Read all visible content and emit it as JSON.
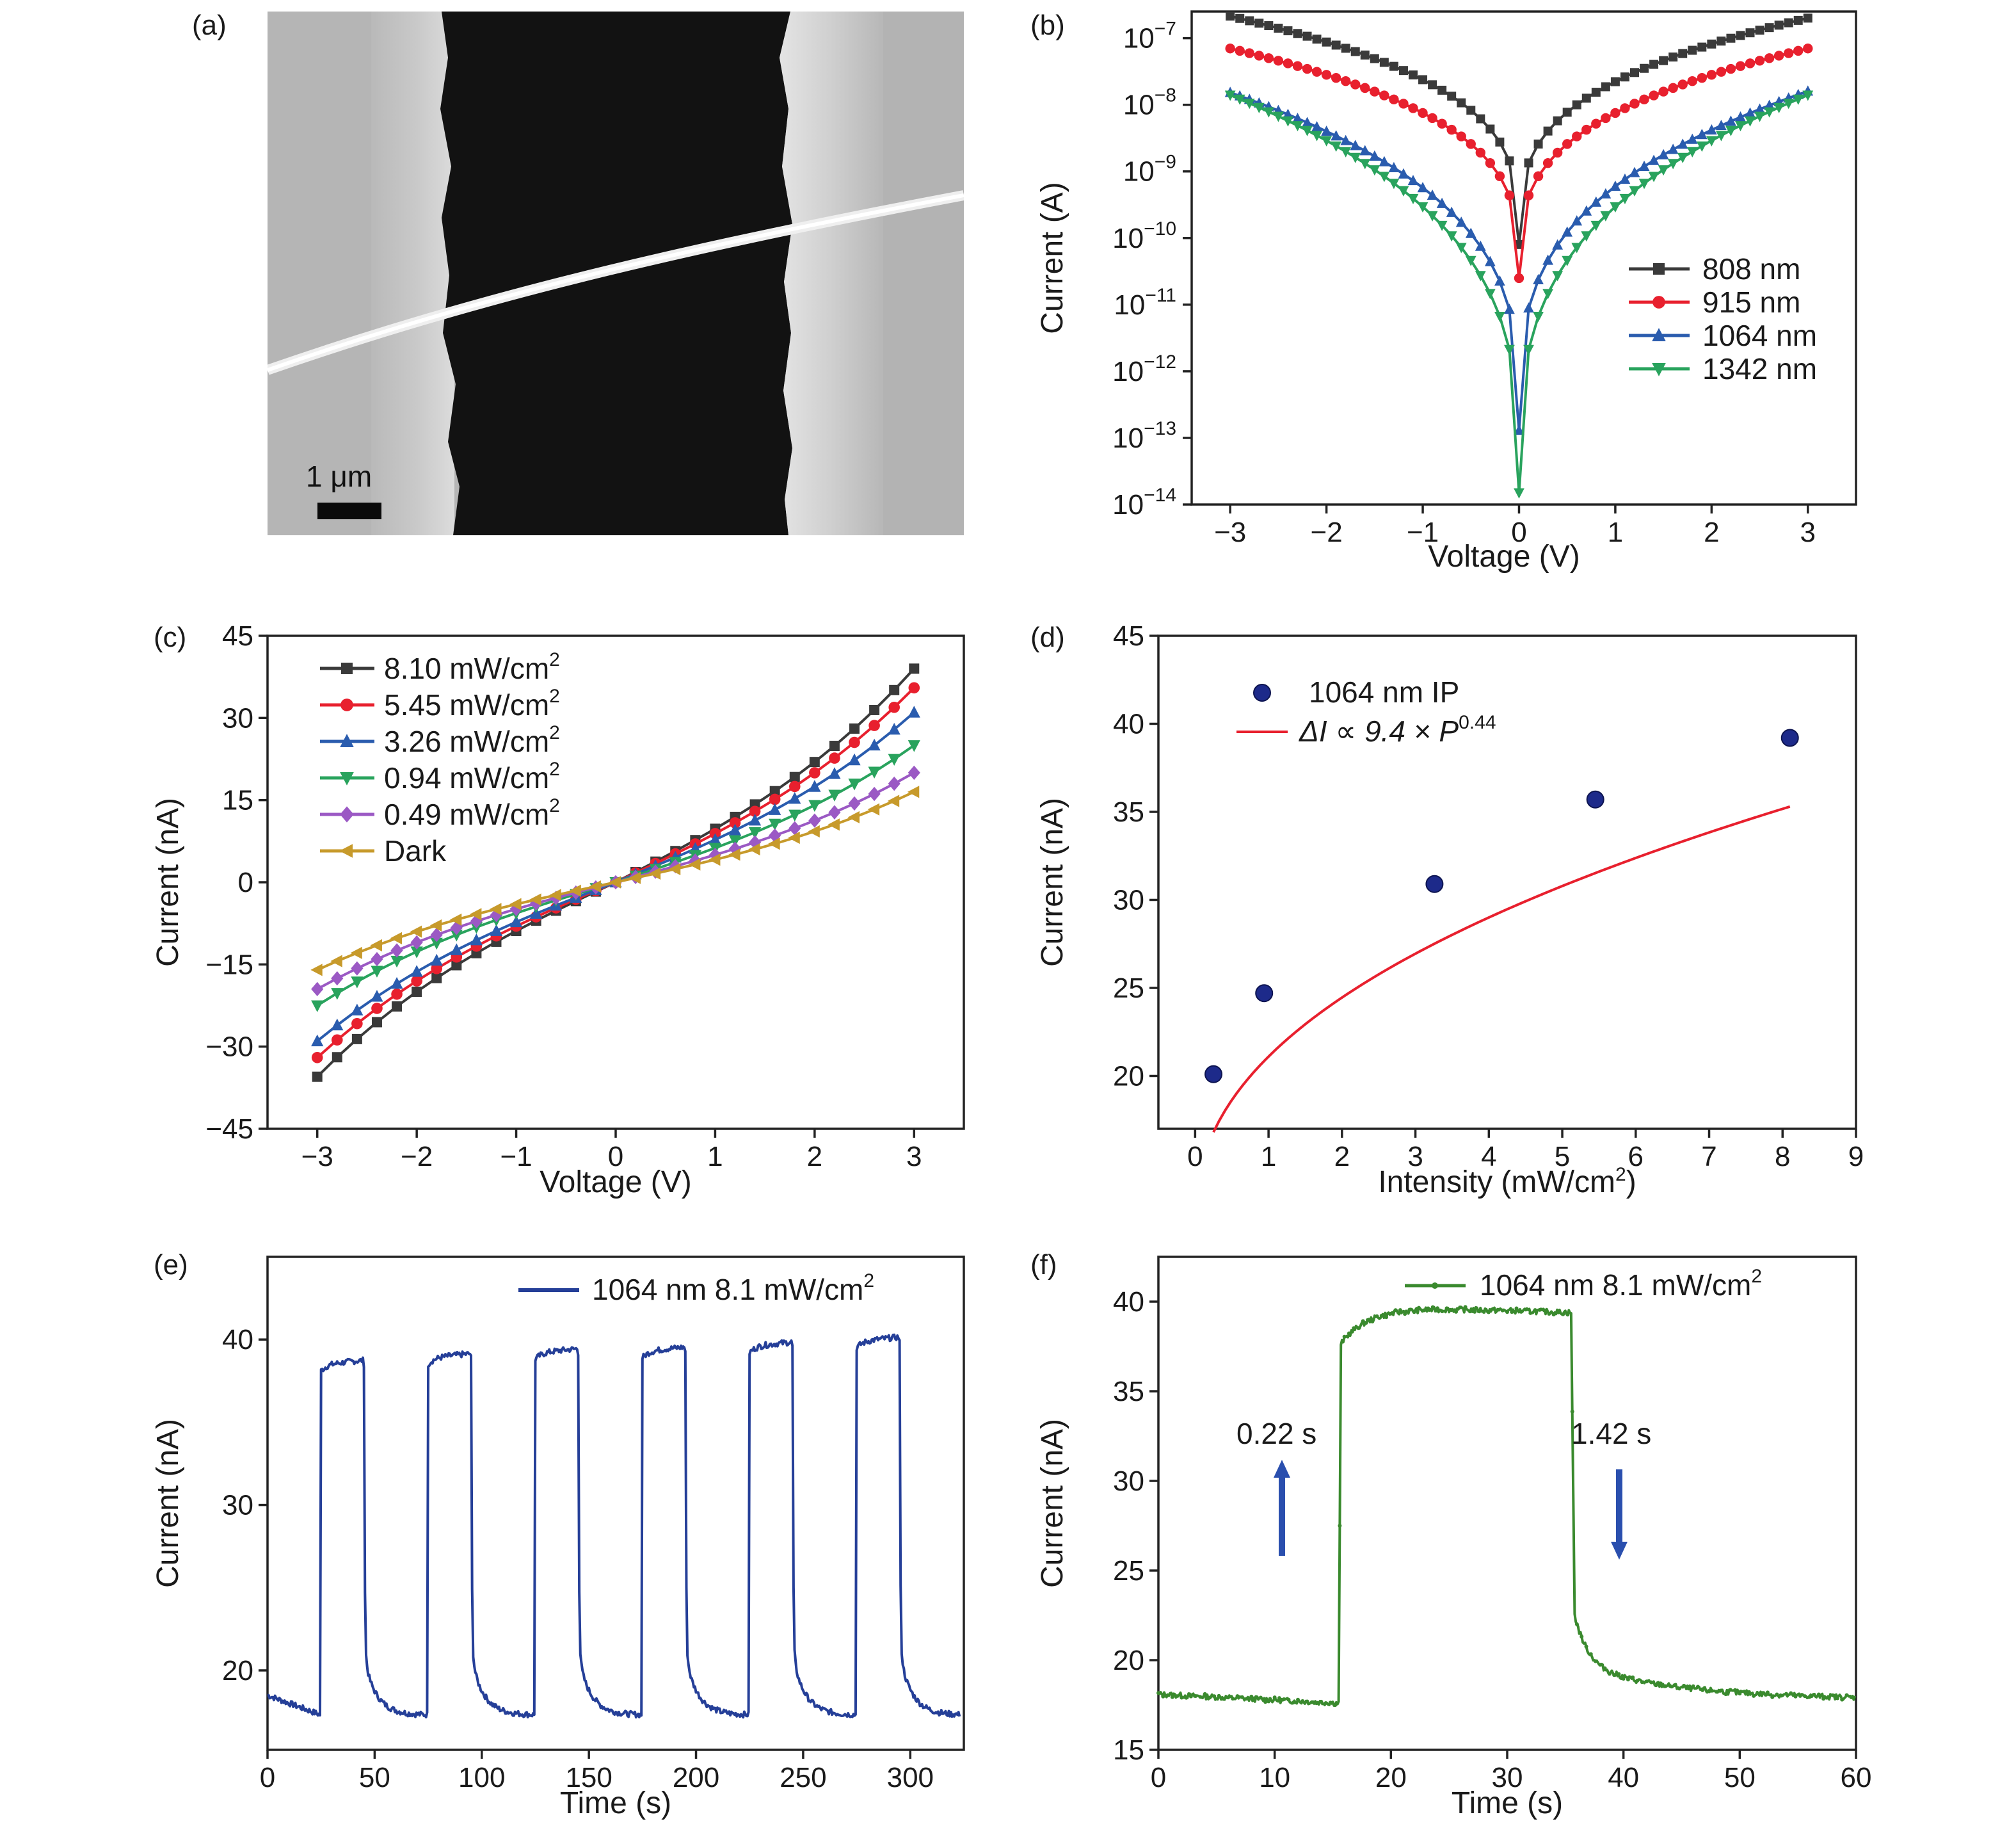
{
  "panels": {
    "a": {
      "label": "(a)",
      "scale_bar_label": "1 μm"
    },
    "b": {
      "label": "(b)"
    },
    "c": {
      "label": "(c)"
    },
    "d": {
      "label": "(d)"
    },
    "e": {
      "label": "(e)"
    },
    "f": {
      "label": "(f)"
    }
  },
  "colors": {
    "black": "#3a3a3a",
    "red": "#e8202e",
    "blue": "#2a5cae",
    "green": "#29a35d",
    "purple": "#9b59c4",
    "gold": "#c79a2b",
    "navy": "#253f98",
    "dgreen": "#3a8a2e"
  },
  "chart_data": [
    {
      "id": "b",
      "type": "line",
      "yscale": "log",
      "xlabel": "Voltage (V)",
      "ylabel": "Current (A)",
      "xlim": [
        -3.4,
        3.5
      ],
      "ylim_exp": [
        -14,
        -6.6
      ],
      "xticks": [
        -3,
        -2,
        -1,
        0,
        1,
        2,
        3
      ],
      "xtick_labels": [
        "−3",
        "−2",
        "−1",
        "0",
        "1",
        "2",
        "3"
      ],
      "yticks_exp": [
        -14,
        -13,
        -12,
        -11,
        -10,
        -9,
        -8,
        -7
      ],
      "ytick_base": "10",
      "ytick_exps": [
        "−14",
        "−13",
        "−12",
        "−11",
        "−10",
        "−9",
        "−8",
        "−7"
      ],
      "series": [
        {
          "name": "808 nm",
          "color": "#3a3a3a",
          "marker": "square",
          "I_at_3V": 2e-07,
          "I_min": 8e-11
        },
        {
          "name": "915 nm",
          "color": "#e8202e",
          "marker": "circle",
          "I_at_3V": 7e-08,
          "I_min": 2.5e-11
        },
        {
          "name": "1064 nm",
          "color": "#2a5cae",
          "marker": "triangle-up",
          "I_at_3V": 1.6e-08,
          "I_min": 1.3e-13
        },
        {
          "name": "1342 nm",
          "color": "#29a35d",
          "marker": "triangle-down",
          "I_at_3V": 1.4e-08,
          "I_min": 1.5e-14
        }
      ]
    },
    {
      "id": "c",
      "type": "line",
      "xlabel": "Voltage (V)",
      "ylabel": "Current (nA)",
      "xlim": [
        -3.5,
        3.5
      ],
      "ylim": [
        -45,
        45
      ],
      "xticks": [
        -3,
        -2,
        -1,
        0,
        1,
        2,
        3
      ],
      "xtick_labels": [
        "−3",
        "−2",
        "−1",
        "0",
        "1",
        "2",
        "3"
      ],
      "yticks": [
        -45,
        -30,
        -15,
        0,
        15,
        30,
        45
      ],
      "ytick_labels": [
        "−45",
        "−30",
        "−15",
        "0",
        "15",
        "30",
        "45"
      ],
      "series": [
        {
          "name": "8.10 mW/cm",
          "sup": "2",
          "color": "#3a3a3a",
          "marker": "square",
          "y_at_neg3": -35.5,
          "y_at_pos3": 39
        },
        {
          "name": "5.45 mW/cm",
          "sup": "2",
          "color": "#e8202e",
          "marker": "circle",
          "y_at_neg3": -32,
          "y_at_pos3": 35.5
        },
        {
          "name": "3.26 mW/cm",
          "sup": "2",
          "color": "#2a5cae",
          "marker": "triangle-up",
          "y_at_neg3": -29,
          "y_at_pos3": 31
        },
        {
          "name": "0.94 mW/cm",
          "sup": "2",
          "color": "#29a35d",
          "marker": "triangle-down",
          "y_at_neg3": -22.5,
          "y_at_pos3": 25
        },
        {
          "name": "0.49 mW/cm",
          "sup": "2",
          "color": "#9b59c4",
          "marker": "diamond",
          "y_at_neg3": -19.5,
          "y_at_pos3": 20
        },
        {
          "name": "Dark",
          "sup": "",
          "color": "#c79a2b",
          "marker": "triangle-left",
          "y_at_neg3": -16,
          "y_at_pos3": 16.5
        }
      ]
    },
    {
      "id": "d",
      "type": "scatter",
      "xlabel": "Intensity (mW/cm",
      "xlabel_sup": "2",
      "xlabel_end": ")",
      "ylabel": "Current (nA)",
      "xlim": [
        -0.5,
        9
      ],
      "ylim": [
        17,
        45
      ],
      "xticks": [
        0,
        1,
        2,
        3,
        4,
        5,
        6,
        7,
        8,
        9
      ],
      "yticks": [
        20,
        25,
        30,
        35,
        40,
        45
      ],
      "points": [
        {
          "x": 0.25,
          "y": 20.1
        },
        {
          "x": 0.94,
          "y": 24.7
        },
        {
          "x": 3.26,
          "y": 30.9
        },
        {
          "x": 5.45,
          "y": 35.7
        },
        {
          "x": 8.1,
          "y": 39.2
        }
      ],
      "fit": {
        "coef": 9.4,
        "exp": 0.44,
        "offset": 11.7
      },
      "legend_points": "1064 nm IP",
      "legend_fit_prefix": "ΔI ∝ 9.4 × P",
      "legend_fit_exp": "0.44"
    },
    {
      "id": "e",
      "type": "line",
      "xlabel": "Time (s)",
      "ylabel": "Current (nA)",
      "xlim": [
        0,
        325
      ],
      "ylim": [
        15.2,
        45
      ],
      "xticks": [
        0,
        50,
        100,
        150,
        200,
        250,
        300
      ],
      "yticks": [
        20,
        30,
        40
      ],
      "legend": "1064 nm 8.1 mW/cm",
      "legend_sup": "2",
      "on_times": [
        25,
        75,
        125,
        175,
        225,
        275
      ],
      "period_on": 20,
      "dark_level": 17.3,
      "light_levels": [
        38.5,
        38.9,
        39.2,
        39.3,
        39.6,
        39.9
      ]
    },
    {
      "id": "f",
      "type": "line",
      "xlabel": "Time (s)",
      "ylabel": "Current (nA)",
      "xlim": [
        0,
        60
      ],
      "ylim": [
        15,
        42.5
      ],
      "xticks": [
        0,
        10,
        20,
        30,
        40,
        50,
        60
      ],
      "yticks": [
        15,
        20,
        25,
        30,
        35,
        40
      ],
      "legend": "1064 nm 8.1 mW/cm",
      "legend_sup": "2",
      "on_time": 15.5,
      "off_time": 35.5,
      "dark_level": 17.6,
      "light_level": 39.6,
      "rise_label": "0.22 s",
      "fall_label": "1.42 s"
    }
  ]
}
